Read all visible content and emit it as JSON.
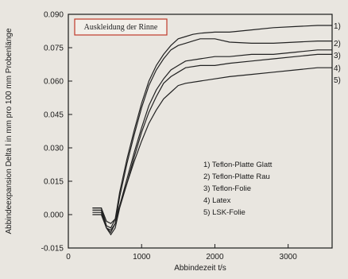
{
  "chart_data": {
    "type": "line",
    "title": "Auskleidung der Rinne",
    "xlabel": "Abbindezeit t/s",
    "ylabel": "Abbindeexpansion Delta l in mm pro 100 mm Probenlänge",
    "xlim": [
      0,
      3600
    ],
    "ylim": [
      -0.015,
      0.09
    ],
    "x_ticks": [
      "0",
      "1000",
      "2000",
      "3000"
    ],
    "y_ticks": [
      "-0.015",
      "0.000",
      "0.015",
      "0.030",
      "0.045",
      "0.060",
      "0.075",
      "0.090"
    ],
    "grid": false,
    "legend_position": "lower-right",
    "series": [
      {
        "name": "1) Teflon-Platte Glatt",
        "end_label": "1)",
        "points": [
          [
            330,
            0.003
          ],
          [
            450,
            0.003
          ],
          [
            520,
            -0.005
          ],
          [
            580,
            -0.006
          ],
          [
            640,
            -0.002
          ],
          [
            700,
            0.01
          ],
          [
            800,
            0.025
          ],
          [
            900,
            0.038
          ],
          [
            1000,
            0.05
          ],
          [
            1100,
            0.06
          ],
          [
            1200,
            0.067
          ],
          [
            1300,
            0.072
          ],
          [
            1400,
            0.076
          ],
          [
            1500,
            0.079
          ],
          [
            1600,
            0.08
          ],
          [
            1700,
            0.081
          ],
          [
            1800,
            0.0815
          ],
          [
            2000,
            0.082
          ],
          [
            2200,
            0.082
          ],
          [
            2500,
            0.083
          ],
          [
            2800,
            0.084
          ],
          [
            3100,
            0.0845
          ],
          [
            3400,
            0.085
          ],
          [
            3600,
            0.085
          ]
        ]
      },
      {
        "name": "2) Teflon-Platte Rau",
        "end_label": "2)",
        "points": [
          [
            330,
            0.001
          ],
          [
            450,
            0.001
          ],
          [
            520,
            -0.006
          ],
          [
            580,
            -0.008
          ],
          [
            640,
            -0.004
          ],
          [
            700,
            0.008
          ],
          [
            800,
            0.023
          ],
          [
            900,
            0.036
          ],
          [
            1000,
            0.048
          ],
          [
            1100,
            0.058
          ],
          [
            1200,
            0.065
          ],
          [
            1300,
            0.07
          ],
          [
            1400,
            0.074
          ],
          [
            1500,
            0.076
          ],
          [
            1600,
            0.077
          ],
          [
            1700,
            0.078
          ],
          [
            1800,
            0.079
          ],
          [
            2000,
            0.079
          ],
          [
            2200,
            0.0775
          ],
          [
            2500,
            0.077
          ],
          [
            2800,
            0.077
          ],
          [
            3100,
            0.0775
          ],
          [
            3400,
            0.078
          ],
          [
            3600,
            0.078
          ]
        ]
      },
      {
        "name": "3) Teflon-Folie",
        "end_label": "3)",
        "points": [
          [
            330,
            0.002
          ],
          [
            450,
            0.002
          ],
          [
            520,
            -0.006
          ],
          [
            580,
            -0.007
          ],
          [
            640,
            -0.004
          ],
          [
            700,
            0.004
          ],
          [
            800,
            0.016
          ],
          [
            900,
            0.028
          ],
          [
            1000,
            0.039
          ],
          [
            1100,
            0.049
          ],
          [
            1200,
            0.056
          ],
          [
            1300,
            0.061
          ],
          [
            1400,
            0.065
          ],
          [
            1500,
            0.067
          ],
          [
            1600,
            0.069
          ],
          [
            1800,
            0.07
          ],
          [
            2000,
            0.071
          ],
          [
            2200,
            0.071
          ],
          [
            2500,
            0.072
          ],
          [
            2800,
            0.072
          ],
          [
            3100,
            0.073
          ],
          [
            3400,
            0.074
          ],
          [
            3600,
            0.074
          ]
        ]
      },
      {
        "name": "4) Latex",
        "end_label": "4)",
        "points": [
          [
            330,
            0.0
          ],
          [
            450,
            0.0
          ],
          [
            520,
            -0.006
          ],
          [
            580,
            -0.009
          ],
          [
            640,
            -0.006
          ],
          [
            700,
            0.003
          ],
          [
            800,
            0.014
          ],
          [
            900,
            0.026
          ],
          [
            1000,
            0.037
          ],
          [
            1100,
            0.046
          ],
          [
            1200,
            0.053
          ],
          [
            1300,
            0.059
          ],
          [
            1400,
            0.062
          ],
          [
            1500,
            0.064
          ],
          [
            1600,
            0.066
          ],
          [
            1800,
            0.067
          ],
          [
            2000,
            0.067
          ],
          [
            2200,
            0.068
          ],
          [
            2500,
            0.069
          ],
          [
            2800,
            0.07
          ],
          [
            3100,
            0.071
          ],
          [
            3400,
            0.072
          ],
          [
            3600,
            0.072
          ]
        ]
      },
      {
        "name": "5) LSK-Folie",
        "end_label": "5)",
        "points": [
          [
            330,
            0.003
          ],
          [
            450,
            0.003
          ],
          [
            520,
            -0.003
          ],
          [
            580,
            -0.004
          ],
          [
            640,
            -0.002
          ],
          [
            700,
            0.004
          ],
          [
            800,
            0.014
          ],
          [
            900,
            0.024
          ],
          [
            1000,
            0.033
          ],
          [
            1100,
            0.041
          ],
          [
            1200,
            0.047
          ],
          [
            1300,
            0.052
          ],
          [
            1400,
            0.055
          ],
          [
            1500,
            0.058
          ],
          [
            1600,
            0.059
          ],
          [
            1800,
            0.06
          ],
          [
            2000,
            0.061
          ],
          [
            2200,
            0.062
          ],
          [
            2500,
            0.063
          ],
          [
            2800,
            0.064
          ],
          [
            3100,
            0.065
          ],
          [
            3400,
            0.066
          ],
          [
            3600,
            0.066
          ]
        ]
      }
    ],
    "colors": {
      "lines": "#222222",
      "title_box_border": "#c0392b",
      "background": "#e9e6e0"
    }
  }
}
